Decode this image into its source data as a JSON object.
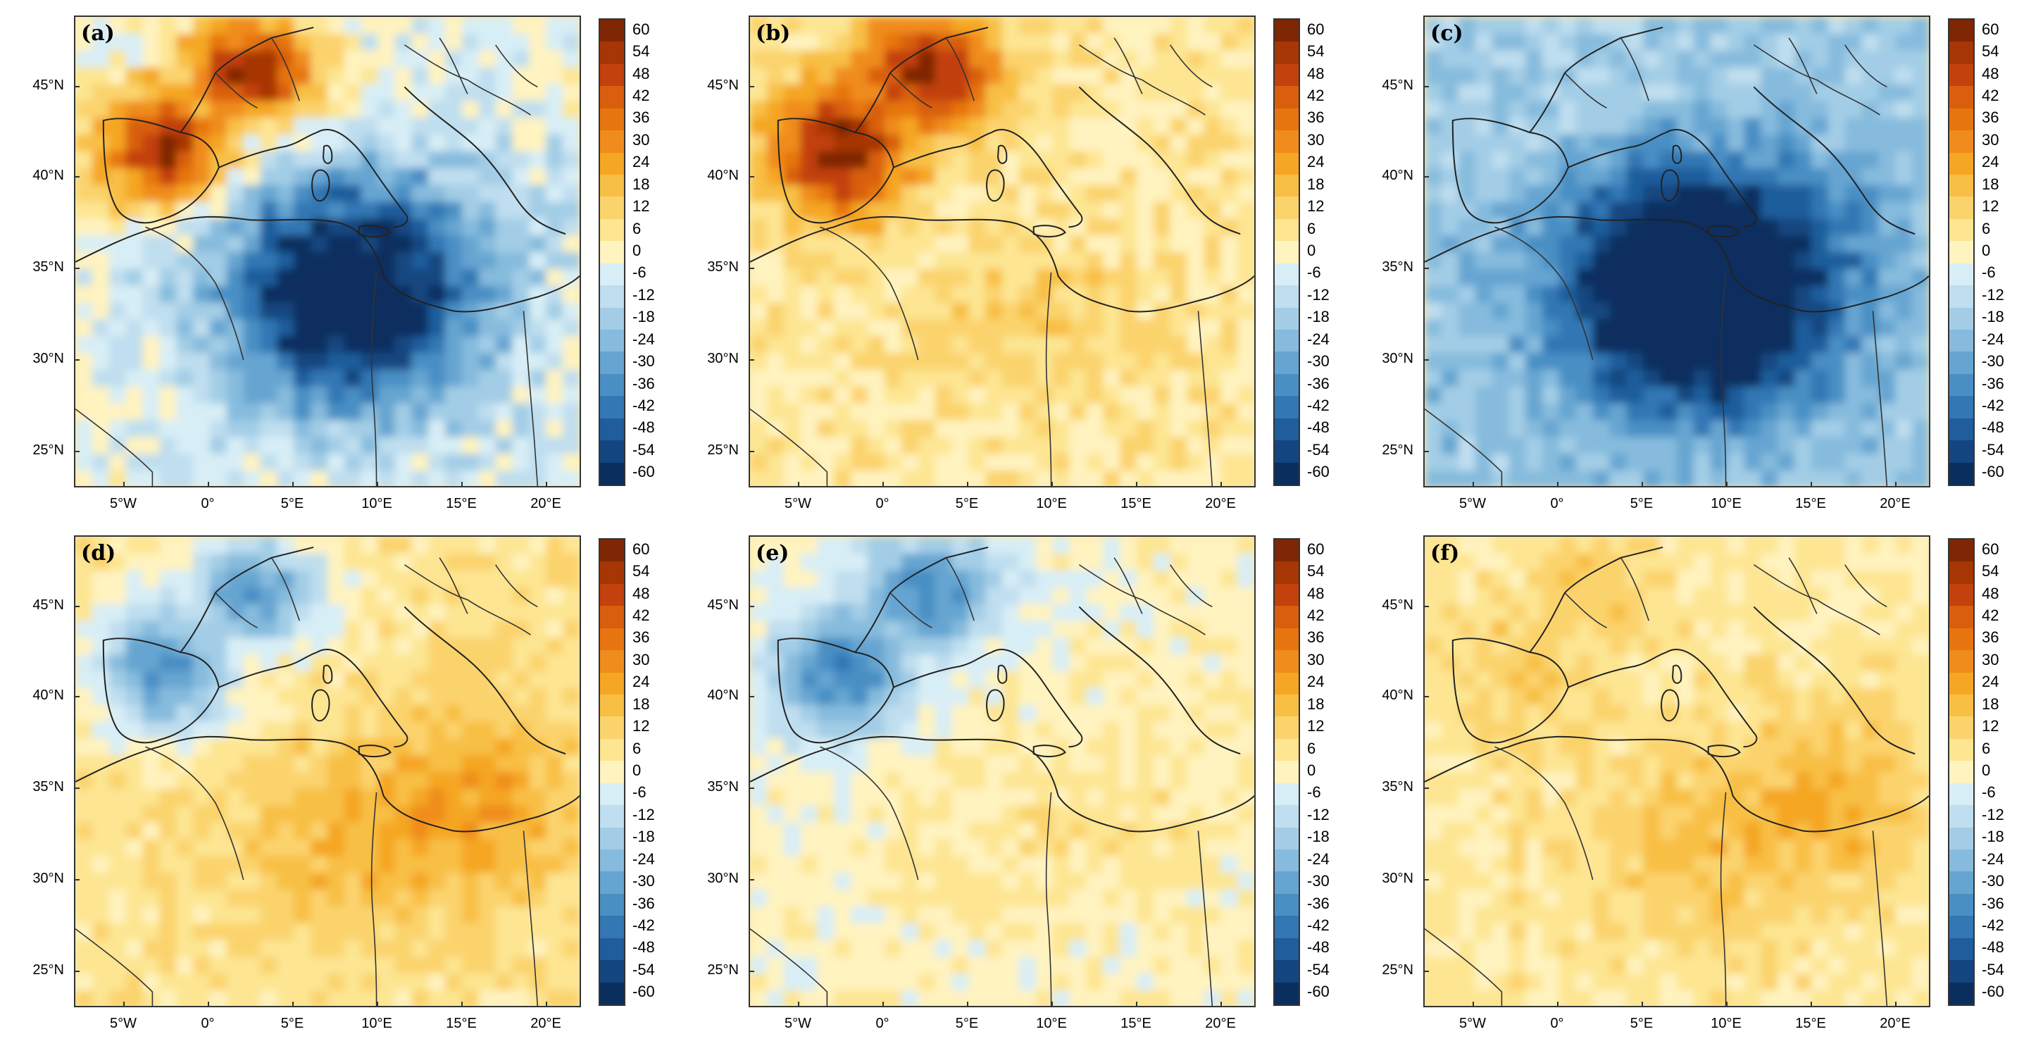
{
  "figure": {
    "panels": [
      {
        "label": "(a)",
        "pattern": "mixed"
      },
      {
        "label": "(b)",
        "pattern": "warm-north"
      },
      {
        "label": "(c)",
        "pattern": "cold-south"
      },
      {
        "label": "(d)",
        "pattern": "cold-north"
      },
      {
        "label": "(e)",
        "pattern": "cold-north-light"
      },
      {
        "label": "(f)",
        "pattern": "warm-light"
      }
    ],
    "lat_labels": [
      "45°N",
      "40°N",
      "35°N",
      "30°N",
      "25°N"
    ],
    "lon_labels": [
      "5°W",
      "0°",
      "5°E",
      "10°E",
      "15°E",
      "20°E"
    ],
    "colorbar": {
      "labels": [
        "60",
        "54",
        "48",
        "42",
        "36",
        "30",
        "24",
        "18",
        "12",
        "6",
        "0",
        "-6",
        "-12",
        "-18",
        "-24",
        "-30",
        "-36",
        "-42",
        "-48",
        "-54",
        "-60"
      ],
      "colors": [
        "#7f2704",
        "#a63603",
        "#c2410c",
        "#d95f0e",
        "#e6750f",
        "#f08c1b",
        "#f5a623",
        "#f8bf45",
        "#fbd36d",
        "#fde592",
        "#fff3bf",
        "#d8eef6",
        "#bfdeef",
        "#a3cde6",
        "#86bbdd",
        "#66a5d1",
        "#4a8fc4",
        "#3377b4",
        "#1f5d9c",
        "#134680",
        "#0a2f5e"
      ]
    }
  }
}
